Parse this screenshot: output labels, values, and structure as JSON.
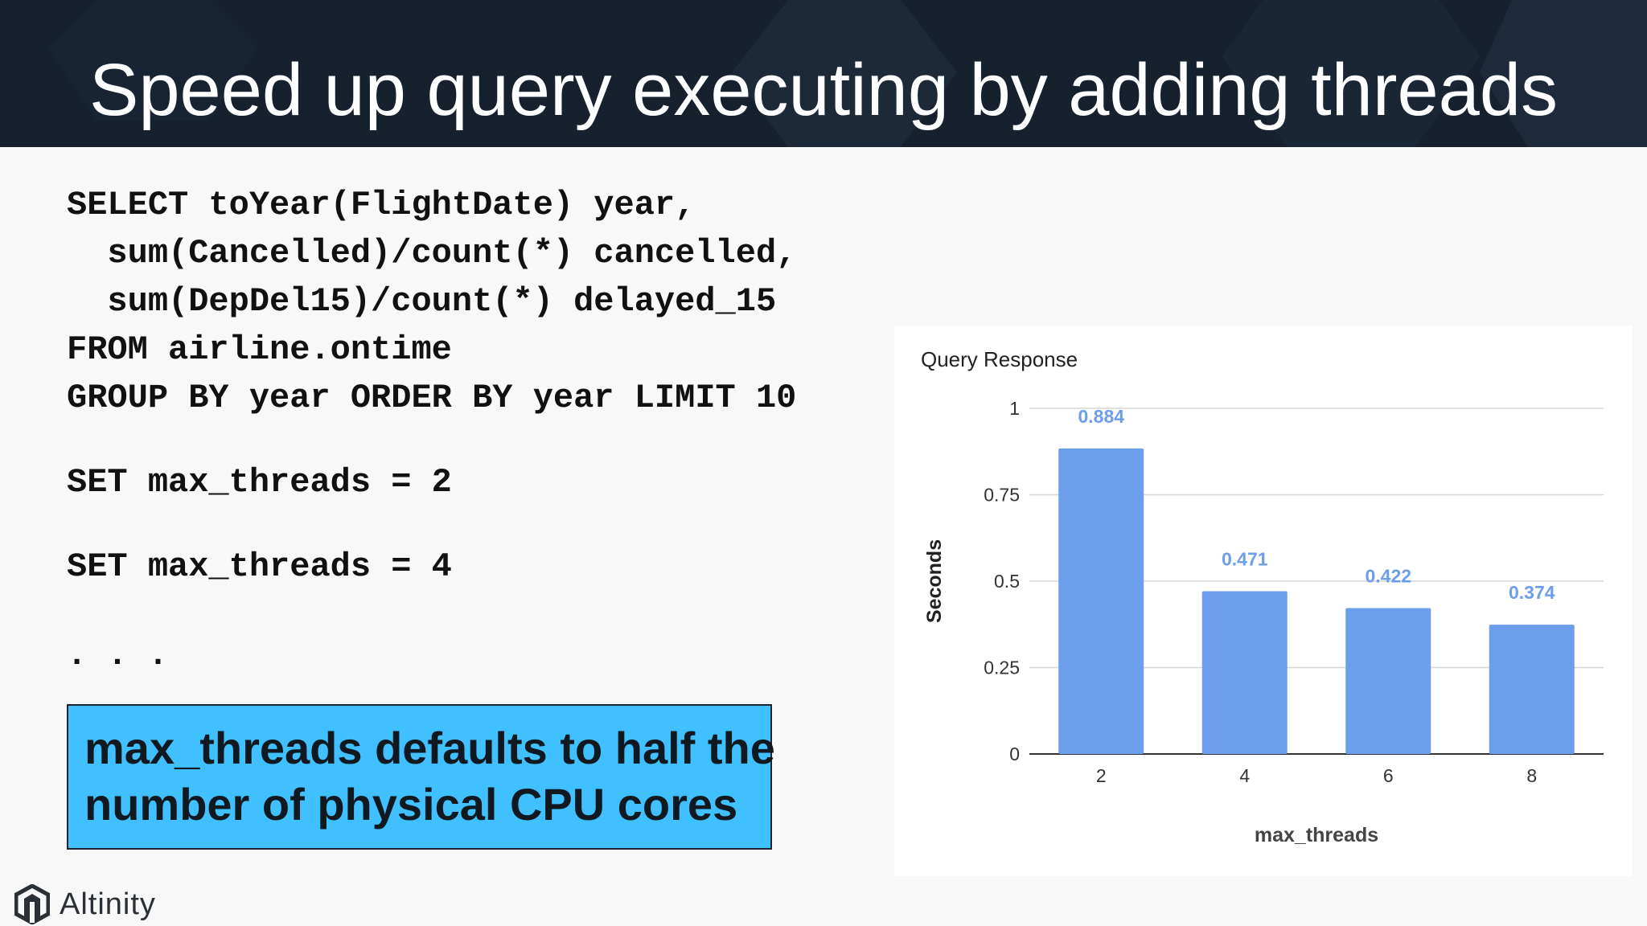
{
  "slide": {
    "title": "Speed up query executing by adding threads"
  },
  "code": {
    "query_lines": [
      "SELECT toYear(FlightDate) year,",
      "  sum(Cancelled)/count(*) cancelled,",
      "  sum(DepDel15)/count(*) delayed_15",
      "FROM airline.ontime",
      "GROUP BY year ORDER BY year LIMIT 10"
    ],
    "set_2": "SET max_threads = 2",
    "set_4": "SET max_threads = 4",
    "ellipsis": ". . ."
  },
  "callout": {
    "line1": "max_threads defaults to half the",
    "line2": "number of physical CPU cores"
  },
  "brand": {
    "name": "Altinity",
    "logo_icon": "altinity-logo-icon"
  },
  "colors": {
    "header_bg": "#17212e",
    "bar": "#6d9eeb",
    "label": "#6d9eeb",
    "callout_bg": "#40c0ff"
  },
  "chart_data": {
    "type": "bar",
    "title": "Query Response",
    "xlabel": "max_threads",
    "ylabel": "Seconds",
    "categories": [
      "2",
      "4",
      "6",
      "8"
    ],
    "values": [
      0.884,
      0.471,
      0.422,
      0.374
    ],
    "data_labels": [
      "0.884",
      "0.471",
      "0.422",
      "0.374"
    ],
    "ylim": [
      0,
      1
    ],
    "yticks": [
      0,
      0.25,
      0.5,
      0.75,
      1
    ],
    "ytick_labels": [
      "0",
      "0.25",
      "0.5",
      "0.75",
      "1"
    ],
    "grid": true,
    "legend": "none"
  }
}
